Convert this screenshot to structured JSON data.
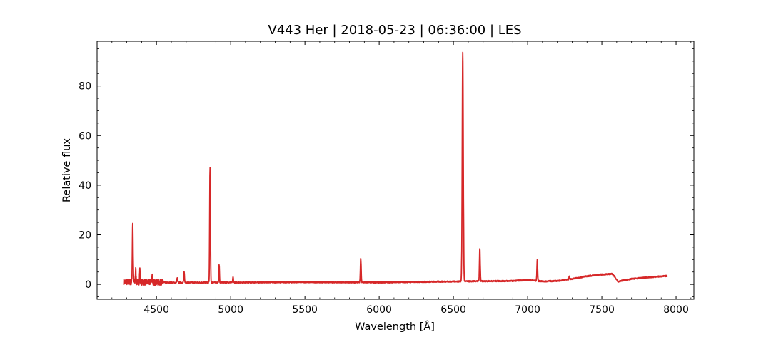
{
  "chart_data": {
    "type": "line",
    "title": "V443 Her | 2018-05-23 | 06:36:00 | LES",
    "xlabel": "Wavelength [Å]",
    "ylabel": "Relative flux",
    "xlim": [
      4100,
      8120
    ],
    "ylim": [
      -6,
      98
    ],
    "xticks": [
      4500,
      5000,
      5500,
      6000,
      6500,
      7000,
      7500,
      8000
    ],
    "yticks": [
      0,
      20,
      40,
      60,
      80
    ],
    "grid": false,
    "series": [
      {
        "color": "#d62728",
        "continuum": [
          [
            4280,
            1.0
          ],
          [
            4600,
            0.7
          ],
          [
            5000,
            0.8
          ],
          [
            5500,
            0.9
          ],
          [
            6000,
            0.8
          ],
          [
            6400,
            1.1
          ],
          [
            6900,
            1.4
          ],
          [
            7000,
            1.8
          ],
          [
            7100,
            1.2
          ],
          [
            7200,
            1.4
          ],
          [
            7300,
            2.2
          ],
          [
            7400,
            3.3
          ],
          [
            7500,
            4.0
          ],
          [
            7570,
            4.2
          ],
          [
            7590,
            2.8
          ],
          [
            7610,
            1.0
          ],
          [
            7640,
            1.6
          ],
          [
            7700,
            2.2
          ],
          [
            7800,
            2.8
          ],
          [
            7940,
            3.4
          ]
        ],
        "emission_lines": [
          {
            "x": 4340,
            "peak": 25.0,
            "width": 2.5
          },
          {
            "x": 4360,
            "peak": 6.0,
            "width": 2
          },
          {
            "x": 4388,
            "peak": 6.0,
            "width": 2
          },
          {
            "x": 4471,
            "peak": 4.0,
            "width": 2
          },
          {
            "x": 4640,
            "peak": 2.5,
            "width": 3
          },
          {
            "x": 4686,
            "peak": 5.0,
            "width": 2.5
          },
          {
            "x": 4861,
            "peak": 47.0,
            "width": 2.5
          },
          {
            "x": 4922,
            "peak": 8.0,
            "width": 2
          },
          {
            "x": 5016,
            "peak": 3.0,
            "width": 2
          },
          {
            "x": 5876,
            "peak": 10.5,
            "width": 2.5
          },
          {
            "x": 6563,
            "peak": 93.5,
            "width": 3.5
          },
          {
            "x": 6678,
            "peak": 14.5,
            "width": 2.5
          },
          {
            "x": 7065,
            "peak": 10.0,
            "width": 2.5
          },
          {
            "x": 7281,
            "peak": 3.5,
            "width": 2
          }
        ],
        "noise_regions": [
          {
            "from": 4280,
            "to": 4550,
            "amplitude": 1.2
          }
        ]
      }
    ]
  }
}
